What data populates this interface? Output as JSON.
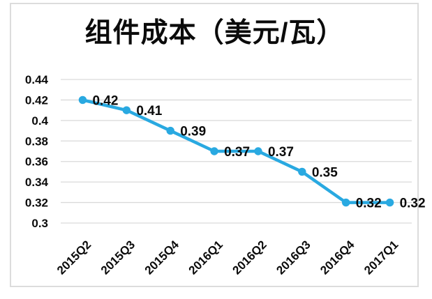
{
  "chart_data": {
    "type": "line",
    "title": "组件成本（美元/瓦）",
    "categories": [
      "2015Q2",
      "2015Q3",
      "2015Q4",
      "2016Q1",
      "2016Q2",
      "2016Q3",
      "2016Q4",
      "2017Q1"
    ],
    "series": [
      {
        "values": [
          0.42,
          0.41,
          0.39,
          0.37,
          0.37,
          0.35,
          0.32,
          0.32
        ],
        "point_labels": [
          "0.42",
          "0.41",
          "0.39",
          "0.37",
          "0.37",
          "0.35",
          "0.32",
          "0.32"
        ],
        "color": "#29a9e1"
      }
    ],
    "xlabel": "",
    "ylabel": "",
    "y_axis": {
      "min": 0.3,
      "max": 0.44,
      "step": 0.02,
      "tick_labels": [
        "0.44",
        "0.42",
        "0.4",
        "0.38",
        "0.36",
        "0.34",
        "0.32",
        "0.3"
      ]
    },
    "grid": true,
    "legend": false,
    "grid_color": "#d9d9d9",
    "text_color": "#0b0b0b"
  }
}
